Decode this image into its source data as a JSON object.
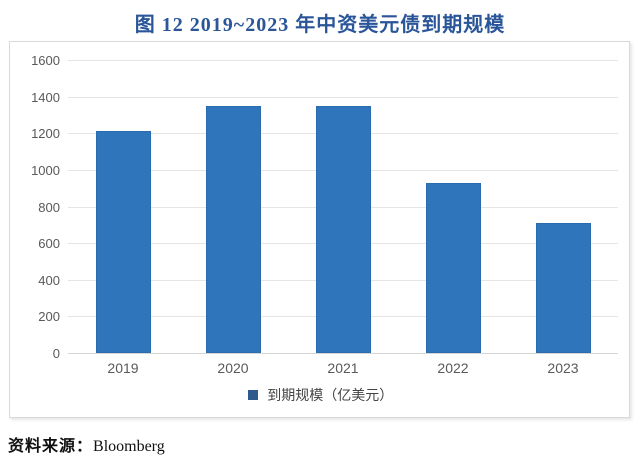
{
  "page": {
    "title": "图 12 2019~2023 年中资美元债到期规模",
    "source_label": "资料来源：",
    "source_value": "Bloomberg"
  },
  "chart_data": {
    "type": "bar",
    "title": "图 12 2019~2023 年中资美元债到期规模",
    "categories": [
      "2019",
      "2020",
      "2021",
      "2022",
      "2023"
    ],
    "values": [
      1210,
      1350,
      1350,
      930,
      710
    ],
    "series_name": "到期规模（亿美元）",
    "xlabel": "",
    "ylabel": "",
    "ylim": [
      0,
      1600
    ],
    "yticks": [
      0,
      200,
      400,
      600,
      800,
      1000,
      1200,
      1400,
      1600
    ],
    "grid": true,
    "legend": {
      "label": "到期规模（亿美元）",
      "position": "bottom"
    },
    "colors": {
      "bar": "#2E75BC",
      "legend_marker": "#2E5A8C",
      "title": "#2A5699",
      "axis_text": "#595959",
      "gridline": "#E5E5E5",
      "box_border": "#D9D9D9"
    }
  }
}
